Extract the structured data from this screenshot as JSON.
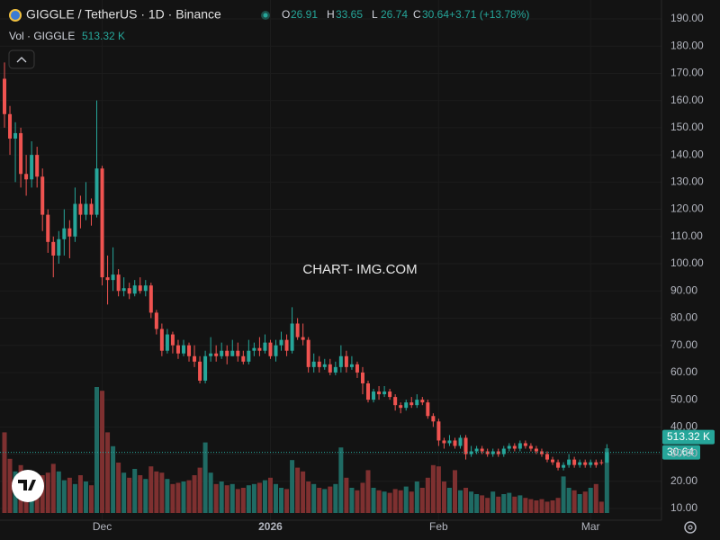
{
  "chart_data": {
    "type": "candlestick",
    "title": "GIGGLE / TetherUS · 1D · Binance",
    "ohlc_labels": [
      "O",
      "H",
      "L",
      "C"
    ],
    "change_label": "+3.71 (+13.78%)",
    "volume_title": "Vol · GIGGLE",
    "volume_last_label": "513.32 K",
    "watermark": "CHART- IMG.COM",
    "colors": {
      "up": "#26a69a",
      "down": "#ef5350",
      "volume_up": "#1f6b64",
      "volume_down": "#7e3030"
    },
    "grid": true,
    "categories": [
      null,
      null,
      null,
      null,
      null,
      null,
      null,
      null,
      null,
      null,
      null,
      null,
      null,
      null,
      null,
      null,
      null,
      null,
      "Dec",
      null,
      null,
      null,
      null,
      null,
      null,
      null,
      null,
      null,
      null,
      null,
      null,
      null,
      null,
      null,
      null,
      null,
      null,
      null,
      null,
      null,
      null,
      null,
      null,
      null,
      null,
      null,
      null,
      null,
      null,
      "2026",
      null,
      null,
      null,
      null,
      null,
      null,
      null,
      null,
      null,
      null,
      null,
      null,
      null,
      null,
      null,
      null,
      null,
      null,
      null,
      null,
      null,
      null,
      null,
      null,
      null,
      null,
      null,
      null,
      null,
      null,
      "Feb",
      null,
      null,
      null,
      null,
      null,
      null,
      null,
      null,
      null,
      null,
      null,
      null,
      null,
      null,
      null,
      null,
      null,
      null,
      null,
      null,
      null,
      null,
      null,
      null,
      null,
      null,
      null,
      "Mar",
      null,
      null,
      null
    ],
    "open": [
      168,
      155,
      146,
      148,
      133,
      131,
      140,
      132,
      118,
      108,
      103,
      109,
      113,
      110,
      122,
      118,
      122,
      118,
      135,
      95,
      94,
      96,
      90,
      91,
      89,
      92,
      90,
      92,
      82,
      76,
      68,
      74,
      70,
      67,
      70,
      66,
      64,
      57,
      66,
      67,
      66,
      68,
      66,
      68,
      66,
      64,
      68,
      69,
      68,
      71,
      66,
      70,
      72,
      68,
      78,
      73,
      72,
      62,
      64,
      62,
      63,
      60,
      62,
      66,
      62,
      63,
      60,
      56,
      50,
      53,
      52,
      53,
      51,
      48,
      47,
      49,
      48,
      50,
      49,
      44,
      42,
      35,
      34,
      35,
      33,
      36,
      30,
      31,
      32,
      31,
      30,
      31,
      30,
      32,
      33,
      32,
      34,
      33,
      32,
      31,
      30,
      28,
      27,
      25,
      26,
      28,
      26,
      27,
      26,
      27,
      27,
      26.91
    ],
    "high": [
      174,
      158,
      152,
      150,
      140,
      145,
      143,
      135,
      120,
      110,
      112,
      120,
      116,
      128,
      125,
      130,
      124,
      160,
      136,
      103,
      106,
      98,
      95,
      93,
      94,
      95,
      94,
      93,
      83,
      78,
      76,
      75,
      72,
      72,
      71,
      70,
      66,
      68,
      73,
      70,
      71,
      70,
      72,
      71,
      68,
      72,
      71,
      73,
      74,
      72,
      72,
      75,
      74,
      84,
      80,
      78,
      73,
      67,
      66,
      65,
      65,
      64,
      70,
      68,
      66,
      64,
      62,
      57,
      54,
      55,
      55,
      54,
      52,
      49,
      50,
      51,
      52,
      51,
      50,
      45,
      43,
      36,
      37,
      36,
      37,
      37,
      33,
      33,
      33,
      32,
      32,
      32,
      33,
      34,
      34,
      35,
      35,
      34,
      33,
      32,
      31,
      29,
      28,
      27,
      30,
      29,
      28,
      28,
      28,
      28,
      28,
      33.65
    ],
    "low": [
      150,
      140,
      130,
      128,
      125,
      128,
      128,
      112,
      104,
      95,
      100,
      103,
      102,
      108,
      113,
      116,
      114,
      117,
      92,
      85,
      90,
      88,
      88,
      87,
      88,
      89,
      88,
      80,
      74,
      66,
      67,
      67,
      65,
      66,
      64,
      62,
      56,
      56,
      64,
      64,
      65,
      63,
      66,
      64,
      63,
      63,
      66,
      66,
      67,
      65,
      64,
      68,
      66,
      67,
      72,
      70,
      60,
      60,
      60,
      61,
      59,
      59,
      60,
      60,
      61,
      58,
      52,
      49,
      49,
      50,
      51,
      50,
      46,
      45,
      46,
      47,
      47,
      48,
      43,
      40,
      33,
      32,
      33,
      32,
      32,
      28,
      29,
      30,
      30,
      29,
      29,
      29,
      29,
      31,
      31,
      31,
      32,
      31,
      30,
      29,
      27,
      26,
      24,
      24,
      25,
      25,
      25,
      25,
      25,
      25,
      26,
      26.74
    ],
    "close": [
      155,
      146,
      148,
      133,
      131,
      140,
      132,
      118,
      108,
      103,
      109,
      113,
      110,
      122,
      118,
      122,
      118,
      135,
      95,
      94,
      96,
      90,
      91,
      89,
      92,
      90,
      92,
      82,
      76,
      68,
      74,
      70,
      67,
      70,
      66,
      64,
      57,
      66,
      67,
      66,
      68,
      66,
      68,
      66,
      64,
      68,
      69,
      68,
      71,
      66,
      70,
      72,
      68,
      78,
      73,
      72,
      62,
      64,
      62,
      63,
      60,
      62,
      66,
      62,
      63,
      60,
      56,
      50,
      53,
      52,
      53,
      51,
      48,
      47,
      49,
      48,
      50,
      49,
      44,
      42,
      35,
      34,
      35,
      33,
      36,
      30,
      31,
      32,
      31,
      30,
      31,
      30,
      32,
      33,
      32,
      34,
      33,
      32,
      31,
      30,
      28,
      27,
      25,
      26,
      28,
      26,
      27,
      26,
      27,
      26,
      26.91,
      30.64
    ],
    "volume": [
      640,
      430,
      330,
      380,
      320,
      250,
      270,
      300,
      320,
      390,
      330,
      260,
      280,
      230,
      300,
      250,
      220,
      1000,
      970,
      640,
      530,
      400,
      320,
      280,
      350,
      300,
      270,
      370,
      330,
      320,
      270,
      230,
      240,
      250,
      260,
      300,
      360,
      560,
      320,
      230,
      250,
      220,
      230,
      190,
      200,
      220,
      230,
      240,
      260,
      280,
      230,
      200,
      190,
      420,
      360,
      330,
      250,
      230,
      200,
      190,
      210,
      230,
      520,
      280,
      200,
      180,
      240,
      340,
      200,
      180,
      170,
      160,
      190,
      180,
      210,
      170,
      250,
      200,
      280,
      380,
      370,
      250,
      200,
      340,
      180,
      200,
      170,
      150,
      140,
      120,
      170,
      130,
      150,
      160,
      130,
      140,
      120,
      110,
      100,
      110,
      90,
      100,
      120,
      290,
      200,
      180,
      150,
      170,
      200,
      230,
      90,
      513.32
    ],
    "ylim": [
      5.7,
      196.95
    ],
    "yticks": [
      {
        "value": 10,
        "label": "10.00"
      },
      {
        "value": 20,
        "label": "20.00"
      },
      {
        "value": 30,
        "label": "30.00"
      },
      {
        "value": 40,
        "label": "40.00"
      },
      {
        "value": 50,
        "label": "50.00"
      },
      {
        "value": 60,
        "label": "60.00"
      },
      {
        "value": 70,
        "label": "70.00"
      },
      {
        "value": 80,
        "label": "80.00"
      },
      {
        "value": 90,
        "label": "90.00"
      },
      {
        "value": 100,
        "label": "100.00"
      },
      {
        "value": 110,
        "label": "110.00"
      },
      {
        "value": 120,
        "label": "120.00"
      },
      {
        "value": 130,
        "label": "130.00"
      },
      {
        "value": 140,
        "label": "140.00"
      },
      {
        "value": 150,
        "label": "150.00"
      },
      {
        "value": 160,
        "label": "160.00"
      },
      {
        "value": 170,
        "label": "170.00"
      },
      {
        "value": 180,
        "label": "180.00"
      },
      {
        "value": 190,
        "label": "190.00"
      }
    ]
  }
}
